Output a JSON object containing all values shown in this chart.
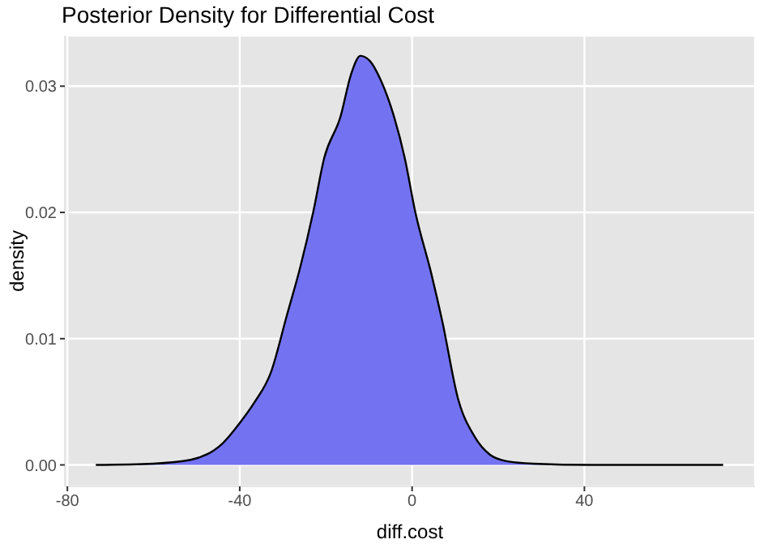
{
  "chart_data": {
    "type": "area",
    "title": "Posterior Density for Differential Cost",
    "xlabel": "diff.cost",
    "ylabel": "density",
    "x": [
      -73.4,
      -60.1,
      -51.4,
      -44,
      -39.6,
      -36.5,
      -32.8,
      -29.1,
      -26,
      -22.9,
      -20.4,
      -16.6,
      -14.2,
      -12,
      -9.8,
      -7.3,
      -4.2,
      -1.7,
      0.7,
      4.5,
      7,
      10.7,
      14.4,
      18.1,
      21.9,
      28.1,
      41.7,
      72.2
    ],
    "series": [
      {
        "color": "#7373f2",
        "values": [
          0,
          0.0001,
          0.0004,
          0.0017,
          0.0035,
          0.005,
          0.0073,
          0.0118,
          0.0156,
          0.0201,
          0.0243,
          0.0276,
          0.0309,
          0.0324,
          0.032,
          0.0305,
          0.0276,
          0.0243,
          0.0201,
          0.0151,
          0.0114,
          0.0052,
          0.0023,
          0.0008,
          0.0003,
          0.0001,
          0,
          0
        ]
      }
    ],
    "xlim": [
      -80.6,
      79.6
    ],
    "xticks": [
      -80,
      -40,
      0,
      40
    ],
    "ylim": [
      -0.0017,
      0.034
    ],
    "yticks": [
      {
        "value": 0,
        "label": "0.00"
      },
      {
        "value": 0.01,
        "label": "0.01"
      },
      {
        "value": 0.02,
        "label": "0.02"
      },
      {
        "value": 0.03,
        "label": "0.03"
      }
    ],
    "grid": true,
    "legend": false
  }
}
